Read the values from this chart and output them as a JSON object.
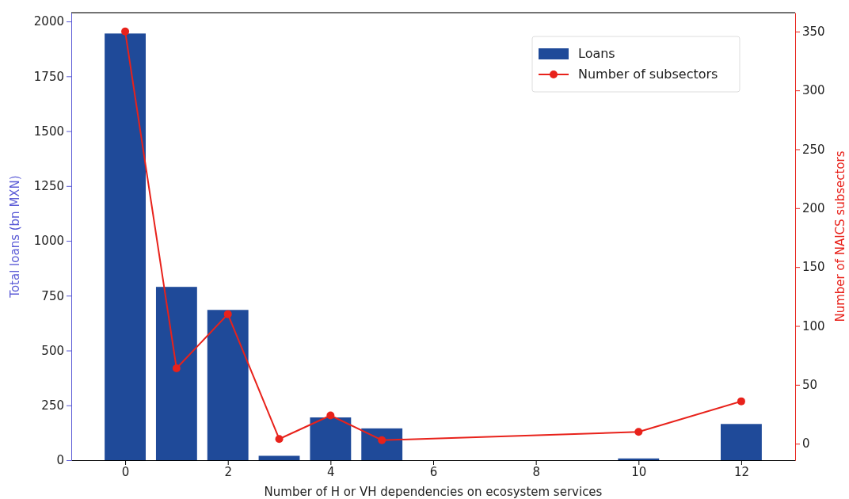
{
  "chart_data": {
    "type": "bar",
    "xlabel": "Number of H or VH dependencies on ecosystem services",
    "ylabel": "Total loans (bn MXN)",
    "y2label": "Number of NAICS subsectors",
    "x": [
      0,
      1,
      2,
      3,
      4,
      5,
      10,
      12
    ],
    "series": [
      {
        "name": "Loans",
        "color": "#1f4a99",
        "values": [
          1945,
          790,
          685,
          20,
          195,
          145,
          8,
          165
        ]
      },
      {
        "name": "Number of subsectors",
        "type": "line",
        "axis": "y2",
        "color": "#e8221b",
        "marker": "circle",
        "values": [
          350,
          64,
          110,
          4,
          24,
          3,
          10,
          36
        ]
      }
    ],
    "xlim": [
      -1.05,
      13.05
    ],
    "xticks": [
      0,
      2,
      4,
      6,
      8,
      10,
      12
    ],
    "ylim": [
      0,
      2040
    ],
    "yticks": [
      0,
      250,
      500,
      750,
      1000,
      1250,
      1500,
      1750,
      2000
    ],
    "y2lim": [
      -14,
      366
    ],
    "y2ticks": [
      0,
      50,
      100,
      150,
      200,
      250,
      300,
      350
    ],
    "legend": "top right",
    "grid": false
  }
}
